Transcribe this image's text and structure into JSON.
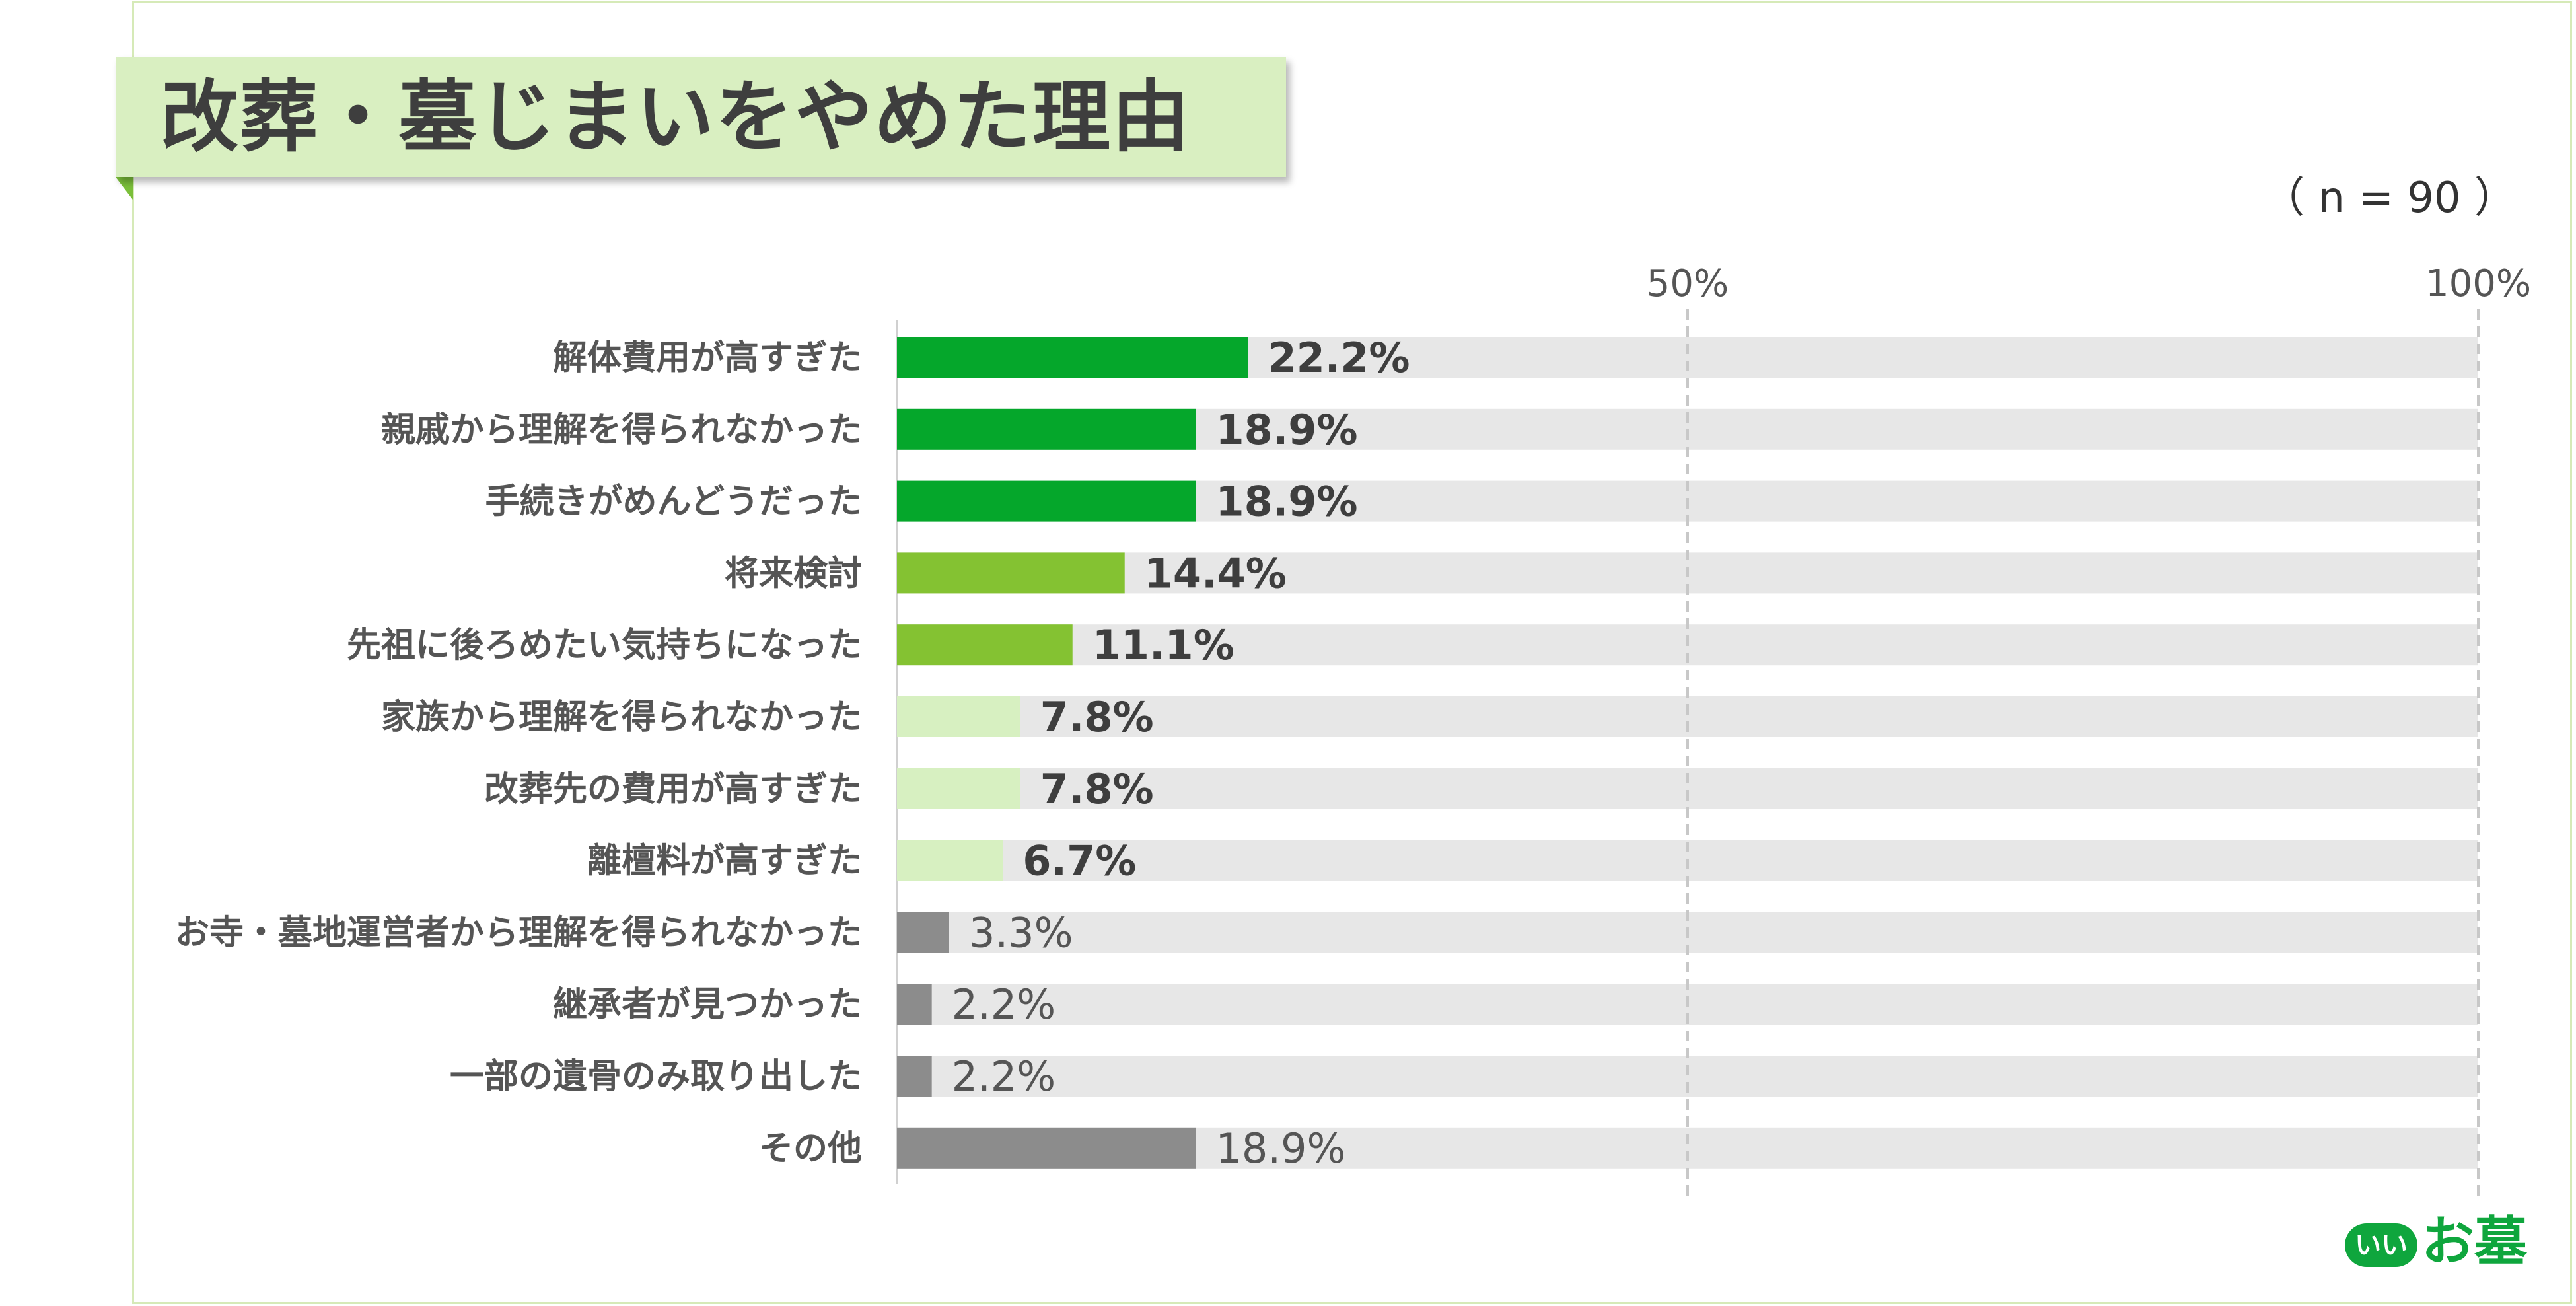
{
  "header": {
    "title": "改葬・墓じまいをやめた理由",
    "sample_size": "（ n = 90 ）"
  },
  "logo": {
    "badge": "いい",
    "text": "お墓"
  },
  "colors": {
    "dark_green": "#05a72b",
    "mid_green": "#84c232",
    "light_green": "#d7f0c1",
    "gray": "#8c8c8c",
    "track": "#e7e7e7"
  },
  "chart_data": {
    "type": "bar",
    "orientation": "horizontal",
    "xlim": [
      0,
      100
    ],
    "ticks": [
      "50%",
      "100%"
    ],
    "tick_values": [
      50,
      100
    ],
    "categories": [
      "解体費用が高すぎた",
      "親戚から理解を得られなかった",
      "手続きがめんどうだった",
      "将来検討",
      "先祖に後ろめたい気持ちになった",
      "家族から理解を得られなかった",
      "改葬先の費用が高すぎた",
      "離檀料が高すぎた",
      "お寺・墓地運営者から理解を得られなかった",
      "継承者が見つかった",
      "一部の遺骨のみ取り出した",
      "その他"
    ],
    "values": [
      22.2,
      18.9,
      18.9,
      14.4,
      11.1,
      7.8,
      7.8,
      6.7,
      3.3,
      2.2,
      2.2,
      18.9
    ],
    "labels": [
      "22.2%",
      "18.9%",
      "18.9%",
      "14.4%",
      "11.1%",
      "7.8%",
      "7.8%",
      "6.7%",
      "3.3%",
      "2.2%",
      "2.2%",
      "18.9%"
    ],
    "color_groups": [
      "dark_green",
      "dark_green",
      "dark_green",
      "mid_green",
      "mid_green",
      "light_green",
      "light_green",
      "light_green",
      "gray",
      "gray",
      "gray",
      "gray"
    ],
    "label_bold": [
      true,
      true,
      true,
      true,
      true,
      true,
      true,
      true,
      false,
      false,
      false,
      false
    ],
    "grid": "dashed vertical at 50% and 100%",
    "legend": "none"
  }
}
